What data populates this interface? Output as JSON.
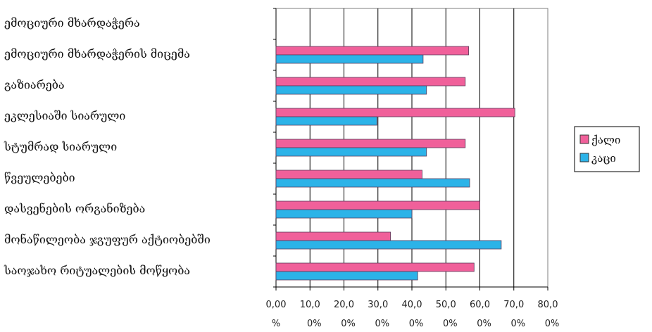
{
  "chart_data": {
    "type": "bar",
    "orientation": "horizontal",
    "categories": [
      "ემოციური მხარდაჭერა",
      "ემოციური მხარდაჭერის მიცემა",
      "გაზიარება",
      "ეკლესიაში სიარული",
      "სტუმრად სიარული",
      "წვეულებები",
      "დასვენების ორგანიზება",
      "მონაწილეობა ჯგუფურ აქტიობებში",
      "საოჯახო რიტუალების მოწყობა"
    ],
    "series": [
      {
        "name": "ქალი",
        "color": "#f0609a",
        "values": [
          null,
          56.7,
          55.7,
          70.3,
          55.7,
          43.0,
          60.0,
          33.7,
          58.3
        ]
      },
      {
        "name": "კაცი",
        "color": "#2cb3e8",
        "values": [
          null,
          43.3,
          44.3,
          29.7,
          44.3,
          57.0,
          40.0,
          66.3,
          41.7
        ]
      }
    ],
    "xlim": [
      0,
      80
    ],
    "x_ticks": [
      [
        "0,00",
        "%"
      ],
      [
        "10,0",
        "0%"
      ],
      [
        "20,0",
        "0%"
      ],
      [
        "30,0",
        "0%"
      ],
      [
        "40,0",
        "0%"
      ],
      [
        "50,0",
        "0%"
      ],
      [
        "60,0",
        "0%"
      ],
      [
        "70,0",
        "0%"
      ],
      [
        "80,0",
        "0%"
      ]
    ],
    "title": "",
    "xlabel": "",
    "ylabel": "",
    "grid": "vertical",
    "legend_position": "right"
  }
}
